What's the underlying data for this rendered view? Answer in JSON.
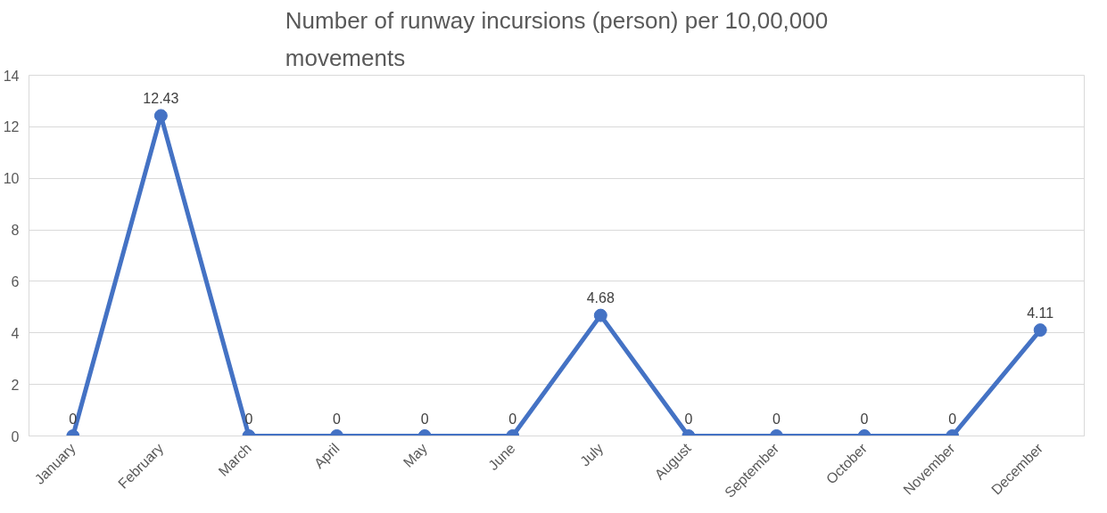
{
  "chart_data": {
    "type": "line",
    "title": "Number of runway incursions (person) per 10,00,000 movements",
    "categories": [
      "January",
      "February",
      "March",
      "April",
      "May",
      "June",
      "July",
      "August",
      "September",
      "October",
      "November",
      "December"
    ],
    "series": [
      {
        "color": "#4472c4",
        "values": [
          0,
          12.43,
          0,
          0,
          0,
          0,
          4.68,
          0,
          0,
          0,
          0,
          4.11
        ]
      }
    ],
    "ylim": [
      0,
      14
    ],
    "yticks": [
      0,
      2,
      4,
      6,
      8,
      10,
      12,
      14
    ],
    "grid": "y",
    "marker": "circle",
    "line_style": "solid",
    "data_labels": true
  }
}
